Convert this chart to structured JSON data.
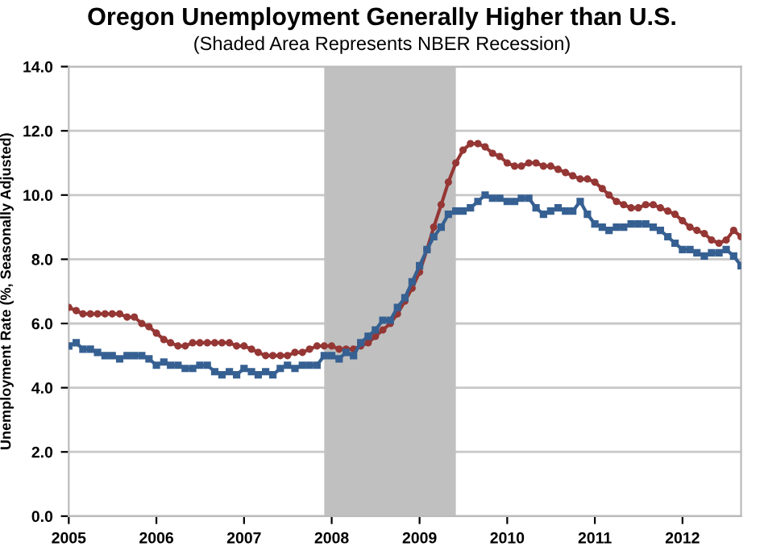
{
  "chart_data": {
    "type": "line",
    "title": "Oregon Unemployment Generally Higher than U.S.",
    "subtitle": "(Shaded Area Represents NBER Recession)",
    "ylabel": "Unemployment Rate (%, Seasonally Adjusted)",
    "x": [
      "2005-01",
      "2005-02",
      "2005-03",
      "2005-04",
      "2005-05",
      "2005-06",
      "2005-07",
      "2005-08",
      "2005-09",
      "2005-10",
      "2005-11",
      "2005-12",
      "2006-01",
      "2006-02",
      "2006-03",
      "2006-04",
      "2006-05",
      "2006-06",
      "2006-07",
      "2006-08",
      "2006-09",
      "2006-10",
      "2006-11",
      "2006-12",
      "2007-01",
      "2007-02",
      "2007-03",
      "2007-04",
      "2007-05",
      "2007-06",
      "2007-07",
      "2007-08",
      "2007-09",
      "2007-10",
      "2007-11",
      "2007-12",
      "2008-01",
      "2008-02",
      "2008-03",
      "2008-04",
      "2008-05",
      "2008-06",
      "2008-07",
      "2008-08",
      "2008-09",
      "2008-10",
      "2008-11",
      "2008-12",
      "2009-01",
      "2009-02",
      "2009-03",
      "2009-04",
      "2009-05",
      "2009-06",
      "2009-07",
      "2009-08",
      "2009-09",
      "2009-10",
      "2009-11",
      "2009-12",
      "2010-01",
      "2010-02",
      "2010-03",
      "2010-04",
      "2010-05",
      "2010-06",
      "2010-07",
      "2010-08",
      "2010-09",
      "2010-10",
      "2010-11",
      "2010-12",
      "2011-01",
      "2011-02",
      "2011-03",
      "2011-04",
      "2011-05",
      "2011-06",
      "2011-07",
      "2011-08",
      "2011-09",
      "2011-10",
      "2011-11",
      "2011-12",
      "2012-01",
      "2012-02",
      "2012-03",
      "2012-04",
      "2012-05",
      "2012-06",
      "2012-07",
      "2012-08",
      "2012-09"
    ],
    "series": [
      {
        "color": "#953735",
        "marker": "circle",
        "values": [
          6.5,
          6.4,
          6.3,
          6.3,
          6.3,
          6.3,
          6.3,
          6.3,
          6.2,
          6.2,
          6.0,
          5.9,
          5.7,
          5.5,
          5.4,
          5.3,
          5.3,
          5.4,
          5.4,
          5.4,
          5.4,
          5.4,
          5.4,
          5.3,
          5.3,
          5.2,
          5.1,
          5.0,
          5.0,
          5.0,
          5.0,
          5.1,
          5.1,
          5.2,
          5.3,
          5.3,
          5.3,
          5.2,
          5.2,
          5.2,
          5.3,
          5.4,
          5.6,
          5.8,
          6.0,
          6.3,
          6.7,
          7.1,
          7.6,
          8.3,
          9.0,
          9.7,
          10.4,
          11.0,
          11.4,
          11.6,
          11.6,
          11.5,
          11.3,
          11.2,
          11.0,
          10.9,
          10.9,
          11.0,
          11.0,
          10.9,
          10.9,
          10.8,
          10.7,
          10.6,
          10.5,
          10.5,
          10.4,
          10.2,
          10.0,
          9.8,
          9.7,
          9.6,
          9.6,
          9.7,
          9.7,
          9.6,
          9.5,
          9.4,
          9.2,
          9.0,
          8.9,
          8.8,
          8.6,
          8.5,
          8.6,
          8.9,
          8.7
        ]
      },
      {
        "color": "#366092",
        "marker": "square",
        "values": [
          5.3,
          5.4,
          5.2,
          5.2,
          5.1,
          5.0,
          5.0,
          4.9,
          5.0,
          5.0,
          5.0,
          4.9,
          4.7,
          4.8,
          4.7,
          4.7,
          4.6,
          4.6,
          4.7,
          4.7,
          4.5,
          4.4,
          4.5,
          4.4,
          4.6,
          4.5,
          4.4,
          4.5,
          4.4,
          4.6,
          4.7,
          4.6,
          4.7,
          4.7,
          4.7,
          5.0,
          5.0,
          4.9,
          5.1,
          5.0,
          5.4,
          5.6,
          5.8,
          6.1,
          6.1,
          6.5,
          6.8,
          7.3,
          7.8,
          8.3,
          8.7,
          9.0,
          9.4,
          9.5,
          9.5,
          9.6,
          9.8,
          10.0,
          9.9,
          9.9,
          9.8,
          9.8,
          9.9,
          9.9,
          9.6,
          9.4,
          9.5,
          9.6,
          9.5,
          9.5,
          9.8,
          9.4,
          9.1,
          9.0,
          8.9,
          9.0,
          9.0,
          9.1,
          9.1,
          9.1,
          9.0,
          8.9,
          8.7,
          8.5,
          8.3,
          8.3,
          8.2,
          8.1,
          8.2,
          8.2,
          8.3,
          8.1,
          7.8
        ]
      }
    ],
    "xlim": [
      "2005-01",
      "2012-09"
    ],
    "xticks": [
      {
        "value": "2005-01",
        "label": "2005"
      },
      {
        "value": "2006-01",
        "label": "2006"
      },
      {
        "value": "2007-01",
        "label": "2007"
      },
      {
        "value": "2008-01",
        "label": "2008"
      },
      {
        "value": "2009-01",
        "label": "2009"
      },
      {
        "value": "2010-01",
        "label": "2010"
      },
      {
        "value": "2011-01",
        "label": "2011"
      },
      {
        "value": "2012-01",
        "label": "2012"
      }
    ],
    "ylim": [
      0,
      14
    ],
    "yticks": [
      {
        "value": 0,
        "label": "0.0"
      },
      {
        "value": 2,
        "label": "2.0"
      },
      {
        "value": 4,
        "label": "4.0"
      },
      {
        "value": 6,
        "label": "6.0"
      },
      {
        "value": 8,
        "label": "8.0"
      },
      {
        "value": 10,
        "label": "10.0"
      },
      {
        "value": 12,
        "label": "12.0"
      },
      {
        "value": 14,
        "label": "14.0"
      }
    ],
    "bands": [
      {
        "axis": "x",
        "from": "2007-12",
        "to": "2009-06",
        "color": "#c0c0c0"
      }
    ],
    "grid": "y",
    "line_style": "solid"
  }
}
